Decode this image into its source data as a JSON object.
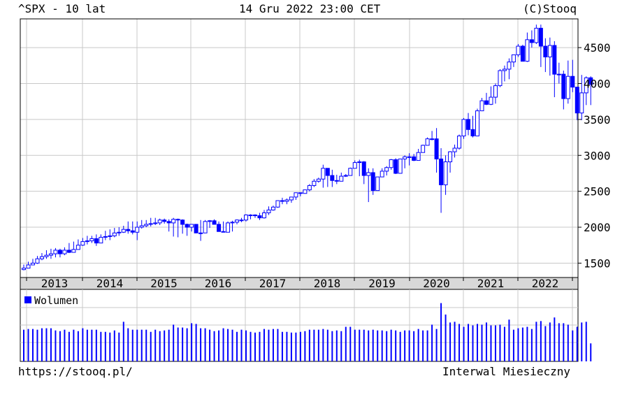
{
  "header": {
    "ticker_period": "^SPX - 10 lat",
    "timestamp": "14 Gru 2022 23:00 CET",
    "copyright": "(C)Stooq"
  },
  "footer": {
    "url": "https://stooq.pl/",
    "interval": "Interwal Miesieczny"
  },
  "colors": {
    "candle": "#0000ff",
    "grid": "#c8c8c8",
    "axis_band": "#d8d8d8",
    "frame": "#000000"
  },
  "chart_data": [
    {
      "type": "candlestick",
      "ylim": [
        1300,
        4900
      ],
      "y_ticks": [
        1500,
        2000,
        2500,
        3000,
        3500,
        4000,
        4500
      ],
      "x_labels": [
        "2013",
        "2014",
        "2015",
        "2016",
        "2017",
        "2018",
        "2019",
        "2020",
        "2021",
        "2022"
      ],
      "grid": true,
      "close": [
        1430,
        1475,
        1500,
        1560,
        1590,
        1610,
        1630,
        1680,
        1630,
        1680,
        1650,
        1690,
        1750,
        1800,
        1810,
        1840,
        1780,
        1860,
        1870,
        1880,
        1920,
        1930,
        1970,
        1950,
        1930,
        2000,
        2020,
        2040,
        2050,
        2060,
        2100,
        2080,
        2060,
        2110,
        2100,
        2040,
        2000,
        2040,
        1920,
        1920,
        2080,
        2090,
        2040,
        1940,
        1930,
        2060,
        2070,
        2100,
        2100,
        2170,
        2170,
        2160,
        2130,
        2200,
        2240,
        2280,
        2370,
        2360,
        2380,
        2420,
        2480,
        2470,
        2520,
        2580,
        2640,
        2670,
        2820,
        2720,
        2650,
        2640,
        2710,
        2720,
        2820,
        2900,
        2910,
        2720,
        2760,
        2510,
        2700,
        2780,
        2830,
        2940,
        2750,
        2950,
        2980,
        2980,
        2930,
        3040,
        3140,
        3230,
        3230,
        2950,
        2590,
        2910,
        3050,
        3100,
        3270,
        3500,
        3360,
        3270,
        3620,
        3760,
        3710,
        3810,
        3970,
        4180,
        4200,
        4300,
        4400,
        4520,
        4310,
        4610,
        4570,
        4770,
        4520,
        4370,
        4530,
        4130,
        4130,
        3790,
        4100,
        3950,
        3590,
        3870,
        4080,
        3990
      ],
      "high": [
        1480,
        1520,
        1560,
        1600,
        1640,
        1680,
        1700,
        1710,
        1700,
        1720,
        1780,
        1800,
        1830,
        1850,
        1880,
        1880,
        1900,
        1900,
        1950,
        1970,
        1990,
        2000,
        2020,
        2080,
        2080,
        2080,
        2100,
        2100,
        2130,
        2130,
        2120,
        2120,
        2110,
        2130,
        2120,
        2110,
        2050,
        2020,
        2010,
        2100,
        2100,
        2100,
        2110,
        2080,
        2080,
        2080,
        2090,
        2110,
        2130,
        2180,
        2180,
        2180,
        2200,
        2240,
        2290,
        2300,
        2370,
        2410,
        2400,
        2420,
        2480,
        2480,
        2520,
        2600,
        2670,
        2690,
        2870,
        2800,
        2800,
        2730,
        2760,
        2740,
        2830,
        2930,
        2940,
        2920,
        2820,
        2820,
        2700,
        2820,
        2850,
        2950,
        2960,
        2950,
        3000,
        3030,
        3020,
        3090,
        3150,
        3250,
        3340,
        3380,
        3100,
        3000,
        3060,
        3150,
        3290,
        3520,
        3590,
        3550,
        3650,
        3800,
        3870,
        3960,
        4000,
        4200,
        4250,
        4350,
        4400,
        4550,
        4540,
        4710,
        4740,
        4820,
        4820,
        4630,
        4640,
        4590,
        4290,
        4180,
        4320,
        4330,
        3920,
        4120,
        4100,
        4100
      ],
      "low": [
        1400,
        1430,
        1470,
        1490,
        1540,
        1560,
        1560,
        1580,
        1580,
        1610,
        1640,
        1650,
        1690,
        1740,
        1760,
        1780,
        1740,
        1780,
        1820,
        1820,
        1860,
        1880,
        1920,
        1910,
        1900,
        1820,
        1980,
        2000,
        2010,
        2030,
        2030,
        2050,
        1940,
        1870,
        1860,
        1910,
        1880,
        1940,
        1960,
        1810,
        1920,
        1990,
        2040,
        2000,
        1930,
        1940,
        1940,
        2040,
        2070,
        2080,
        2110,
        2130,
        2100,
        2120,
        2170,
        2230,
        2270,
        2320,
        2320,
        2340,
        2380,
        2430,
        2470,
        2500,
        2560,
        2620,
        2550,
        2560,
        2560,
        2600,
        2690,
        2700,
        2720,
        2880,
        2710,
        2600,
        2350,
        2450,
        2580,
        2750,
        2720,
        2800,
        2740,
        2840,
        2820,
        2860,
        2920,
        2990,
        3070,
        3150,
        3210,
        2760,
        2200,
        2450,
        2760,
        2970,
        3080,
        3230,
        3280,
        3250,
        3280,
        3640,
        3700,
        3700,
        3720,
        3950,
        4030,
        4060,
        4230,
        4370,
        4380,
        4300,
        4500,
        4550,
        4230,
        4160,
        4110,
        3810,
        4000,
        3640,
        3720,
        3880,
        3490,
        3490,
        3700,
        3700
      ]
    },
    {
      "type": "bar",
      "title": "Wolumen",
      "values": [
        0.44,
        0.45,
        0.45,
        0.44,
        0.46,
        0.46,
        0.46,
        0.43,
        0.42,
        0.44,
        0.41,
        0.44,
        0.42,
        0.46,
        0.44,
        0.44,
        0.44,
        0.41,
        0.41,
        0.4,
        0.43,
        0.4,
        0.55,
        0.46,
        0.44,
        0.44,
        0.44,
        0.44,
        0.41,
        0.44,
        0.42,
        0.43,
        0.44,
        0.51,
        0.47,
        0.47,
        0.46,
        0.53,
        0.52,
        0.46,
        0.46,
        0.44,
        0.42,
        0.43,
        0.46,
        0.45,
        0.44,
        0.41,
        0.44,
        0.43,
        0.41,
        0.4,
        0.41,
        0.45,
        0.44,
        0.45,
        0.45,
        0.41,
        0.41,
        0.4,
        0.4,
        0.41,
        0.42,
        0.44,
        0.44,
        0.44,
        0.45,
        0.44,
        0.42,
        0.43,
        0.42,
        0.48,
        0.48,
        0.44,
        0.44,
        0.44,
        0.43,
        0.44,
        0.43,
        0.43,
        0.42,
        0.44,
        0.43,
        0.41,
        0.43,
        0.43,
        0.42,
        0.45,
        0.43,
        0.43,
        0.51,
        0.45,
        0.81,
        0.65,
        0.54,
        0.55,
        0.52,
        0.48,
        0.52,
        0.5,
        0.52,
        0.51,
        0.54,
        0.5,
        0.5,
        0.51,
        0.48,
        0.58,
        0.44,
        0.46,
        0.47,
        0.48,
        0.45,
        0.55,
        0.56,
        0.49,
        0.54,
        0.61,
        0.53,
        0.53,
        0.51,
        0.43,
        0.48,
        0.54,
        0.55,
        0.25
      ]
    }
  ]
}
